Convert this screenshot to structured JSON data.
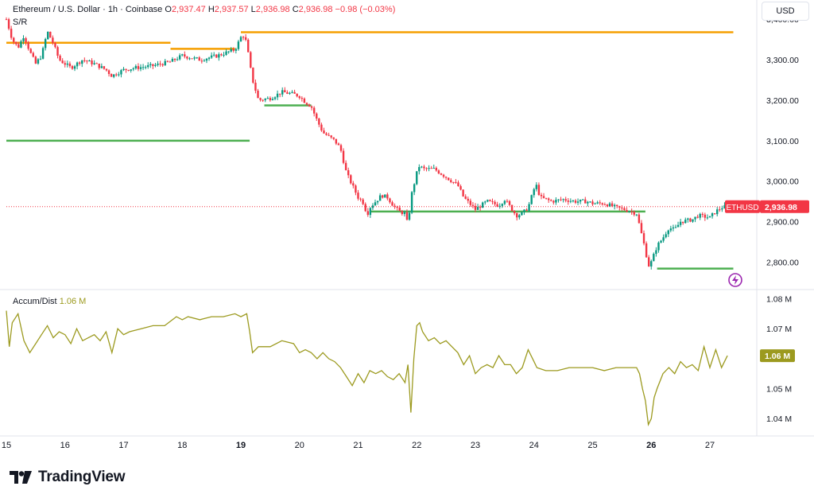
{
  "header": {
    "symbol_title": "Ethereum / U.S. Dollar · 1h · Coinbase",
    "open_label": "O",
    "open_value": "2,937.47",
    "high_label": "H",
    "high_value": "2,937.57",
    "low_label": "L",
    "low_value": "2,936.98",
    "close_label": "C",
    "close_value": "2,936.98",
    "change_value": "−0.98 (−0.03%)",
    "indicator": "S/R",
    "currency": "USD"
  },
  "brand": {
    "name": "TradingView"
  },
  "colors": {
    "up": "#089981",
    "down": "#f23645",
    "resistance": "#f59f00",
    "support": "#4caf50",
    "accum_dist": "#9c9a1f",
    "current": "#f23645"
  },
  "chart_data": [
    {
      "type": "candlestick",
      "title": "Ethereum / U.S. Dollar · 1h · Coinbase",
      "x_tick_labels": [
        "15",
        "16",
        "17",
        "18",
        "19",
        "20",
        "21",
        "22",
        "23",
        "24",
        "25",
        "26",
        "27"
      ],
      "x_range_days": [
        15,
        27.8
      ],
      "y_range": [
        2740,
        3420
      ],
      "y_tick_labels": [
        "3,400.00",
        "3,300.00",
        "3,200.00",
        "3,100.00",
        "3,000.00",
        "2,900.00",
        "2,800.00"
      ],
      "y_ticks": [
        3400,
        3300,
        3200,
        3100,
        3000,
        2900,
        2800
      ],
      "close_path": [
        [
          15.0,
          3400
        ],
        [
          15.1,
          3350
        ],
        [
          15.2,
          3330
        ],
        [
          15.3,
          3360
        ],
        [
          15.4,
          3320
        ],
        [
          15.5,
          3290
        ],
        [
          15.6,
          3310
        ],
        [
          15.7,
          3370
        ],
        [
          15.8,
          3340
        ],
        [
          15.9,
          3300
        ],
        [
          16.0,
          3290
        ],
        [
          16.1,
          3280
        ],
        [
          16.3,
          3300
        ],
        [
          16.5,
          3290
        ],
        [
          16.7,
          3275
        ],
        [
          16.8,
          3260
        ],
        [
          17.0,
          3275
        ],
        [
          17.2,
          3280
        ],
        [
          17.5,
          3285
        ],
        [
          17.8,
          3295
        ],
        [
          18.0,
          3310
        ],
        [
          18.3,
          3300
        ],
        [
          18.6,
          3310
        ],
        [
          18.9,
          3325
        ],
        [
          19.0,
          3355
        ],
        [
          19.05,
          3360
        ],
        [
          19.1,
          3340
        ],
        [
          19.15,
          3290
        ],
        [
          19.2,
          3250
        ],
        [
          19.3,
          3200
        ],
        [
          19.5,
          3205
        ],
        [
          19.7,
          3220
        ],
        [
          19.9,
          3215
        ],
        [
          20.0,
          3210
        ],
        [
          20.1,
          3195
        ],
        [
          20.2,
          3185
        ],
        [
          20.3,
          3150
        ],
        [
          20.4,
          3120
        ],
        [
          20.5,
          3110
        ],
        [
          20.6,
          3100
        ],
        [
          20.7,
          3080
        ],
        [
          20.8,
          3020
        ],
        [
          20.9,
          2990
        ],
        [
          21.0,
          2960
        ],
        [
          21.1,
          2945
        ],
        [
          21.15,
          2915
        ],
        [
          21.2,
          2935
        ],
        [
          21.3,
          2950
        ],
        [
          21.4,
          2965
        ],
        [
          21.5,
          2960
        ],
        [
          21.6,
          2940
        ],
        [
          21.7,
          2925
        ],
        [
          21.8,
          2920
        ],
        [
          21.85,
          2890
        ],
        [
          21.9,
          2960
        ],
        [
          22.0,
          3020
        ],
        [
          22.05,
          3040
        ],
        [
          22.1,
          3030
        ],
        [
          22.3,
          3030
        ],
        [
          22.5,
          3010
        ],
        [
          22.6,
          3000
        ],
        [
          22.7,
          2990
        ],
        [
          22.8,
          2960
        ],
        [
          22.9,
          2945
        ],
        [
          23.0,
          2930
        ],
        [
          23.2,
          2950
        ],
        [
          23.4,
          2940
        ],
        [
          23.5,
          2955
        ],
        [
          23.6,
          2935
        ],
        [
          23.7,
          2915
        ],
        [
          23.8,
          2920
        ],
        [
          23.9,
          2935
        ],
        [
          24.0,
          2980
        ],
        [
          24.05,
          2990
        ],
        [
          24.1,
          2960
        ],
        [
          24.3,
          2950
        ],
        [
          24.5,
          2955
        ],
        [
          24.7,
          2950
        ],
        [
          24.9,
          2950
        ],
        [
          25.0,
          2945
        ],
        [
          25.2,
          2945
        ],
        [
          25.4,
          2935
        ],
        [
          25.6,
          2928
        ],
        [
          25.75,
          2920
        ],
        [
          25.8,
          2890
        ],
        [
          25.85,
          2860
        ],
        [
          25.9,
          2830
        ],
        [
          25.95,
          2790
        ],
        [
          26.0,
          2800
        ],
        [
          26.05,
          2820
        ],
        [
          26.1,
          2840
        ],
        [
          26.2,
          2860
        ],
        [
          26.3,
          2885
        ],
        [
          26.4,
          2880
        ],
        [
          26.5,
          2900
        ],
        [
          26.7,
          2905
        ],
        [
          26.8,
          2915
        ],
        [
          27.0,
          2910
        ],
        [
          27.1,
          2925
        ],
        [
          27.2,
          2935
        ],
        [
          27.3,
          2937
        ]
      ],
      "support_resistance": [
        {
          "role": "resistance",
          "from": 15.0,
          "to": 17.8,
          "price": 3342
        },
        {
          "role": "resistance",
          "from": 17.8,
          "to": 18.9,
          "price": 3327
        },
        {
          "role": "resistance",
          "from": 19.0,
          "to": 27.4,
          "price": 3368
        },
        {
          "role": "support",
          "from": 15.0,
          "to": 19.15,
          "price": 3100
        },
        {
          "role": "support",
          "from": 19.4,
          "to": 20.2,
          "price": 3187
        },
        {
          "role": "support",
          "from": 21.2,
          "to": 25.9,
          "price": 2925
        },
        {
          "role": "support",
          "from": 26.1,
          "to": 27.4,
          "price": 2784
        }
      ],
      "current_price": 2936.98,
      "current_price_label": "2,936.98",
      "current_symbol_label": "ETHUSD"
    },
    {
      "type": "line",
      "title": "Accum/Dist",
      "current_value_label": "1.06 M",
      "y_range": [
        1.035,
        1.082
      ],
      "y_tick_labels": [
        "1.08 M",
        "1.07 M",
        "1.06 M",
        "1.05 M",
        "1.04 M"
      ],
      "y_ticks": [
        1.08,
        1.07,
        1.06,
        1.05,
        1.04
      ],
      "series": [
        {
          "values": [
            [
              15.0,
              1.076
            ],
            [
              15.05,
              1.064
            ],
            [
              15.1,
              1.072
            ],
            [
              15.2,
              1.075
            ],
            [
              15.3,
              1.066
            ],
            [
              15.4,
              1.062
            ],
            [
              15.5,
              1.065
            ],
            [
              15.6,
              1.068
            ],
            [
              15.7,
              1.071
            ],
            [
              15.8,
              1.067
            ],
            [
              15.9,
              1.069
            ],
            [
              16.0,
              1.068
            ],
            [
              16.1,
              1.065
            ],
            [
              16.2,
              1.07
            ],
            [
              16.3,
              1.066
            ],
            [
              16.5,
              1.068
            ],
            [
              16.6,
              1.066
            ],
            [
              16.7,
              1.069
            ],
            [
              16.8,
              1.062
            ],
            [
              16.9,
              1.07
            ],
            [
              17.0,
              1.068
            ],
            [
              17.1,
              1.069
            ],
            [
              17.3,
              1.07
            ],
            [
              17.5,
              1.071
            ],
            [
              17.7,
              1.071
            ],
            [
              17.9,
              1.074
            ],
            [
              18.0,
              1.073
            ],
            [
              18.1,
              1.074
            ],
            [
              18.3,
              1.073
            ],
            [
              18.5,
              1.074
            ],
            [
              18.7,
              1.074
            ],
            [
              18.9,
              1.075
            ],
            [
              19.0,
              1.074
            ],
            [
              19.1,
              1.075
            ],
            [
              19.15,
              1.069
            ],
            [
              19.2,
              1.062
            ],
            [
              19.3,
              1.064
            ],
            [
              19.5,
              1.064
            ],
            [
              19.7,
              1.066
            ],
            [
              19.9,
              1.065
            ],
            [
              20.0,
              1.062
            ],
            [
              20.1,
              1.063
            ],
            [
              20.2,
              1.062
            ],
            [
              20.3,
              1.06
            ],
            [
              20.4,
              1.062
            ],
            [
              20.5,
              1.06
            ],
            [
              20.6,
              1.059
            ],
            [
              20.7,
              1.057
            ],
            [
              20.8,
              1.054
            ],
            [
              20.9,
              1.051
            ],
            [
              21.0,
              1.055
            ],
            [
              21.1,
              1.052
            ],
            [
              21.2,
              1.056
            ],
            [
              21.3,
              1.055
            ],
            [
              21.4,
              1.056
            ],
            [
              21.5,
              1.054
            ],
            [
              21.6,
              1.053
            ],
            [
              21.7,
              1.055
            ],
            [
              21.8,
              1.052
            ],
            [
              21.85,
              1.058
            ],
            [
              21.9,
              1.042
            ],
            [
              21.95,
              1.06
            ],
            [
              22.0,
              1.071
            ],
            [
              22.05,
              1.072
            ],
            [
              22.1,
              1.069
            ],
            [
              22.2,
              1.066
            ],
            [
              22.3,
              1.067
            ],
            [
              22.4,
              1.065
            ],
            [
              22.5,
              1.066
            ],
            [
              22.6,
              1.064
            ],
            [
              22.7,
              1.062
            ],
            [
              22.8,
              1.058
            ],
            [
              22.9,
              1.061
            ],
            [
              23.0,
              1.055
            ],
            [
              23.1,
              1.057
            ],
            [
              23.2,
              1.058
            ],
            [
              23.3,
              1.057
            ],
            [
              23.4,
              1.061
            ],
            [
              23.5,
              1.058
            ],
            [
              23.6,
              1.058
            ],
            [
              23.7,
              1.055
            ],
            [
              23.8,
              1.057
            ],
            [
              23.9,
              1.063
            ],
            [
              24.0,
              1.059
            ],
            [
              24.05,
              1.057
            ],
            [
              24.2,
              1.056
            ],
            [
              24.4,
              1.056
            ],
            [
              24.6,
              1.057
            ],
            [
              24.8,
              1.057
            ],
            [
              25.0,
              1.057
            ],
            [
              25.2,
              1.056
            ],
            [
              25.4,
              1.057
            ],
            [
              25.6,
              1.057
            ],
            [
              25.75,
              1.057
            ],
            [
              25.8,
              1.055
            ],
            [
              25.85,
              1.05
            ],
            [
              25.9,
              1.046
            ],
            [
              25.95,
              1.038
            ],
            [
              26.0,
              1.04
            ],
            [
              26.05,
              1.047
            ],
            [
              26.1,
              1.05
            ],
            [
              26.2,
              1.055
            ],
            [
              26.3,
              1.057
            ],
            [
              26.4,
              1.055
            ],
            [
              26.5,
              1.059
            ],
            [
              26.6,
              1.057
            ],
            [
              26.7,
              1.058
            ],
            [
              26.8,
              1.056
            ],
            [
              26.9,
              1.064
            ],
            [
              27.0,
              1.057
            ],
            [
              27.1,
              1.063
            ],
            [
              27.2,
              1.057
            ],
            [
              27.3,
              1.061
            ]
          ]
        }
      ]
    }
  ]
}
